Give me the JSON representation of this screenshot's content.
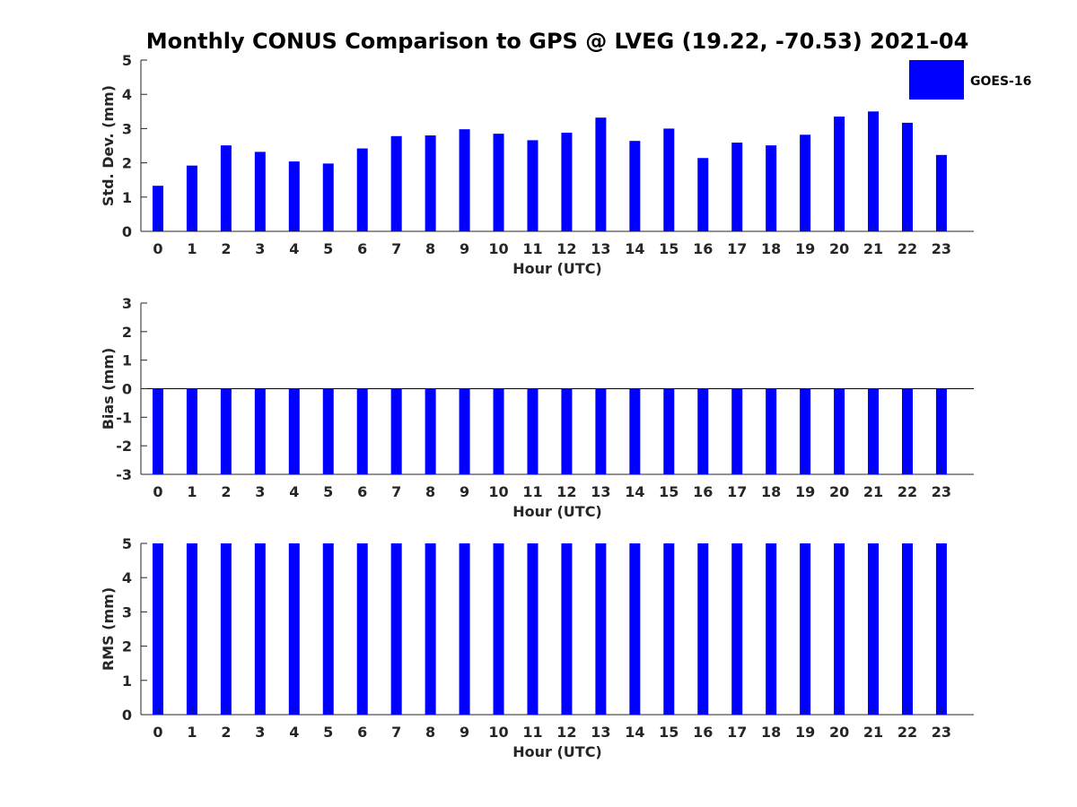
{
  "title": "Monthly CONUS Comparison to GPS @ LVEG (19.22, -70.53) 2021-04",
  "legend": {
    "label": "GOES-16",
    "color": "#0000ff"
  },
  "chart_data": [
    {
      "type": "bar",
      "xlabel": "Hour (UTC)",
      "ylabel": "Std. Dev. (mm)",
      "ylim": [
        0,
        5
      ],
      "yticks": [
        0,
        1,
        2,
        3,
        4,
        5
      ],
      "categories": [
        "0",
        "1",
        "2",
        "3",
        "4",
        "5",
        "6",
        "7",
        "8",
        "9",
        "10",
        "11",
        "12",
        "13",
        "14",
        "15",
        "16",
        "17",
        "18",
        "19",
        "20",
        "21",
        "22",
        "23"
      ],
      "series": [
        {
          "name": "GOES-16",
          "color": "#0000ff",
          "values": [
            1.33,
            1.92,
            2.51,
            2.32,
            2.04,
            1.98,
            2.42,
            2.78,
            2.8,
            2.98,
            2.85,
            2.66,
            2.88,
            3.32,
            2.64,
            3.0,
            2.14,
            2.59,
            2.51,
            2.82,
            3.35,
            3.5,
            3.17,
            2.23
          ]
        }
      ],
      "legend_position": "top-right",
      "grid": false
    },
    {
      "type": "bar",
      "xlabel": "Hour (UTC)",
      "ylabel": "Bias (mm)",
      "ylim": [
        -3,
        3
      ],
      "yticks": [
        -3,
        -2,
        -1,
        0,
        1,
        2,
        3
      ],
      "categories": [
        "0",
        "1",
        "2",
        "3",
        "4",
        "5",
        "6",
        "7",
        "8",
        "9",
        "10",
        "11",
        "12",
        "13",
        "14",
        "15",
        "16",
        "17",
        "18",
        "19",
        "20",
        "21",
        "22",
        "23"
      ],
      "series": [
        {
          "name": "GOES-16",
          "color": "#0000ff",
          "values": [
            -3,
            -3,
            -3,
            -3,
            -3,
            -3,
            -3,
            -3,
            -3,
            -3,
            -3,
            -3,
            -3,
            -3,
            -3,
            -3,
            -3,
            -3,
            -3,
            -3,
            -3,
            -3,
            -3,
            -3
          ]
        }
      ],
      "grid": false
    },
    {
      "type": "bar",
      "xlabel": "Hour (UTC)",
      "ylabel": "RMS (mm)",
      "ylim": [
        0,
        5
      ],
      "yticks": [
        0,
        1,
        2,
        3,
        4,
        5
      ],
      "categories": [
        "0",
        "1",
        "2",
        "3",
        "4",
        "5",
        "6",
        "7",
        "8",
        "9",
        "10",
        "11",
        "12",
        "13",
        "14",
        "15",
        "16",
        "17",
        "18",
        "19",
        "20",
        "21",
        "22",
        "23"
      ],
      "series": [
        {
          "name": "GOES-16",
          "color": "#0000ff",
          "values": [
            5,
            5,
            5,
            5,
            5,
            5,
            5,
            5,
            5,
            5,
            5,
            5,
            5,
            5,
            5,
            5,
            5,
            5,
            5,
            5,
            5,
            5,
            5,
            5
          ]
        }
      ],
      "grid": false
    }
  ]
}
